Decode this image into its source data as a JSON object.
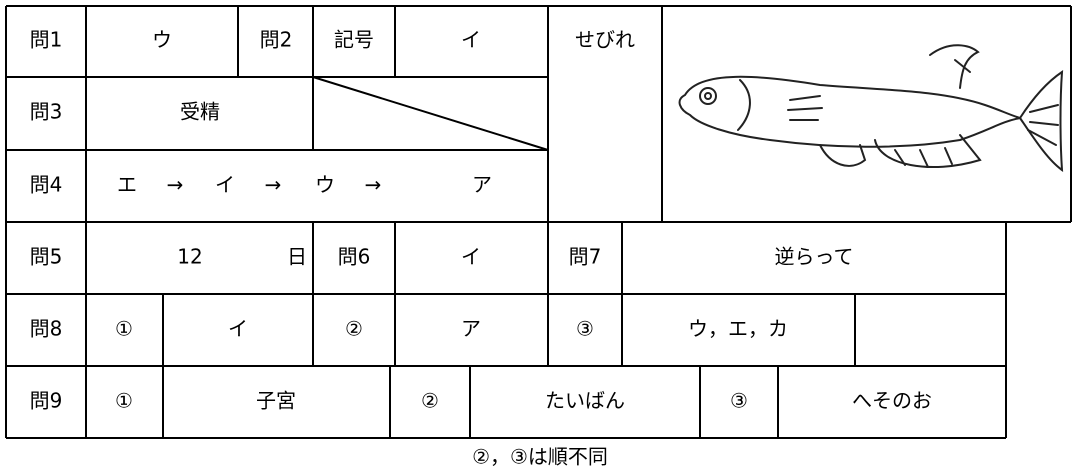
{
  "table": {
    "rows": [
      [
        "問1",
        "ウ",
        "問2",
        "記号",
        "イ",
        "せびれ"
      ],
      [
        "問3",
        "受精"
      ],
      [
        "問4",
        "エ",
        "→",
        "イ",
        "→",
        "ウ",
        "→",
        "ア"
      ],
      [
        "問5",
        "12",
        "日",
        "問6",
        "イ",
        "問7",
        "逆らって"
      ],
      [
        "問8",
        "①",
        "イ",
        "②",
        "ア",
        "③",
        "ウ，エ，カ"
      ],
      [
        "問9",
        "①",
        "子宮",
        "②",
        "たいばん",
        "③",
        "へそのお"
      ]
    ]
  },
  "note": "②，③は順不同"
}
